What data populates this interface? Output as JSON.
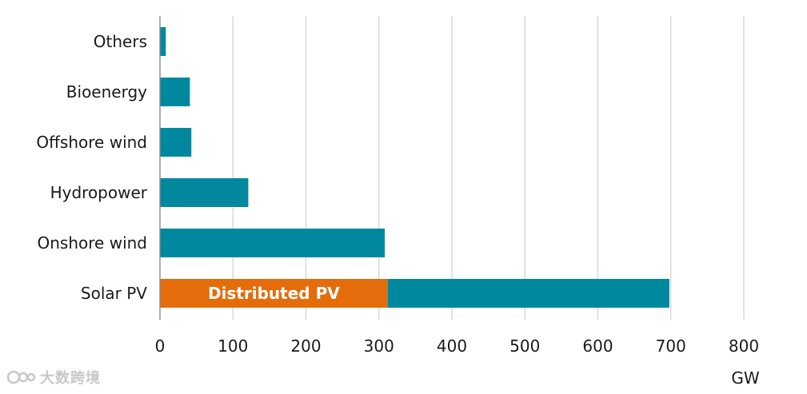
{
  "chart_data": {
    "type": "bar",
    "orientation": "horizontal",
    "title": "",
    "xlabel": "",
    "ylabel": "",
    "unit": "GW",
    "xlim": [
      0,
      800
    ],
    "xticks": [
      "0",
      "100",
      "200",
      "300",
      "400",
      "500",
      "600",
      "700",
      "800"
    ],
    "grid": "vertical",
    "categories": [
      "Others",
      "Bioenergy",
      "Offshore wind",
      "Hydropower",
      "Onshore wind",
      "Solar PV"
    ],
    "series": [
      {
        "name": "Distributed PV",
        "color": "#e46c0a",
        "values": [
          0,
          0,
          0,
          0,
          0,
          312
        ],
        "label_on_bar": true
      },
      {
        "name": "",
        "color": "#00889e",
        "values": [
          8,
          41,
          43,
          121,
          308,
          386
        ]
      }
    ],
    "stacked": true
  },
  "watermark": {
    "text": "大数跨境",
    "icon": "logo-icon"
  }
}
